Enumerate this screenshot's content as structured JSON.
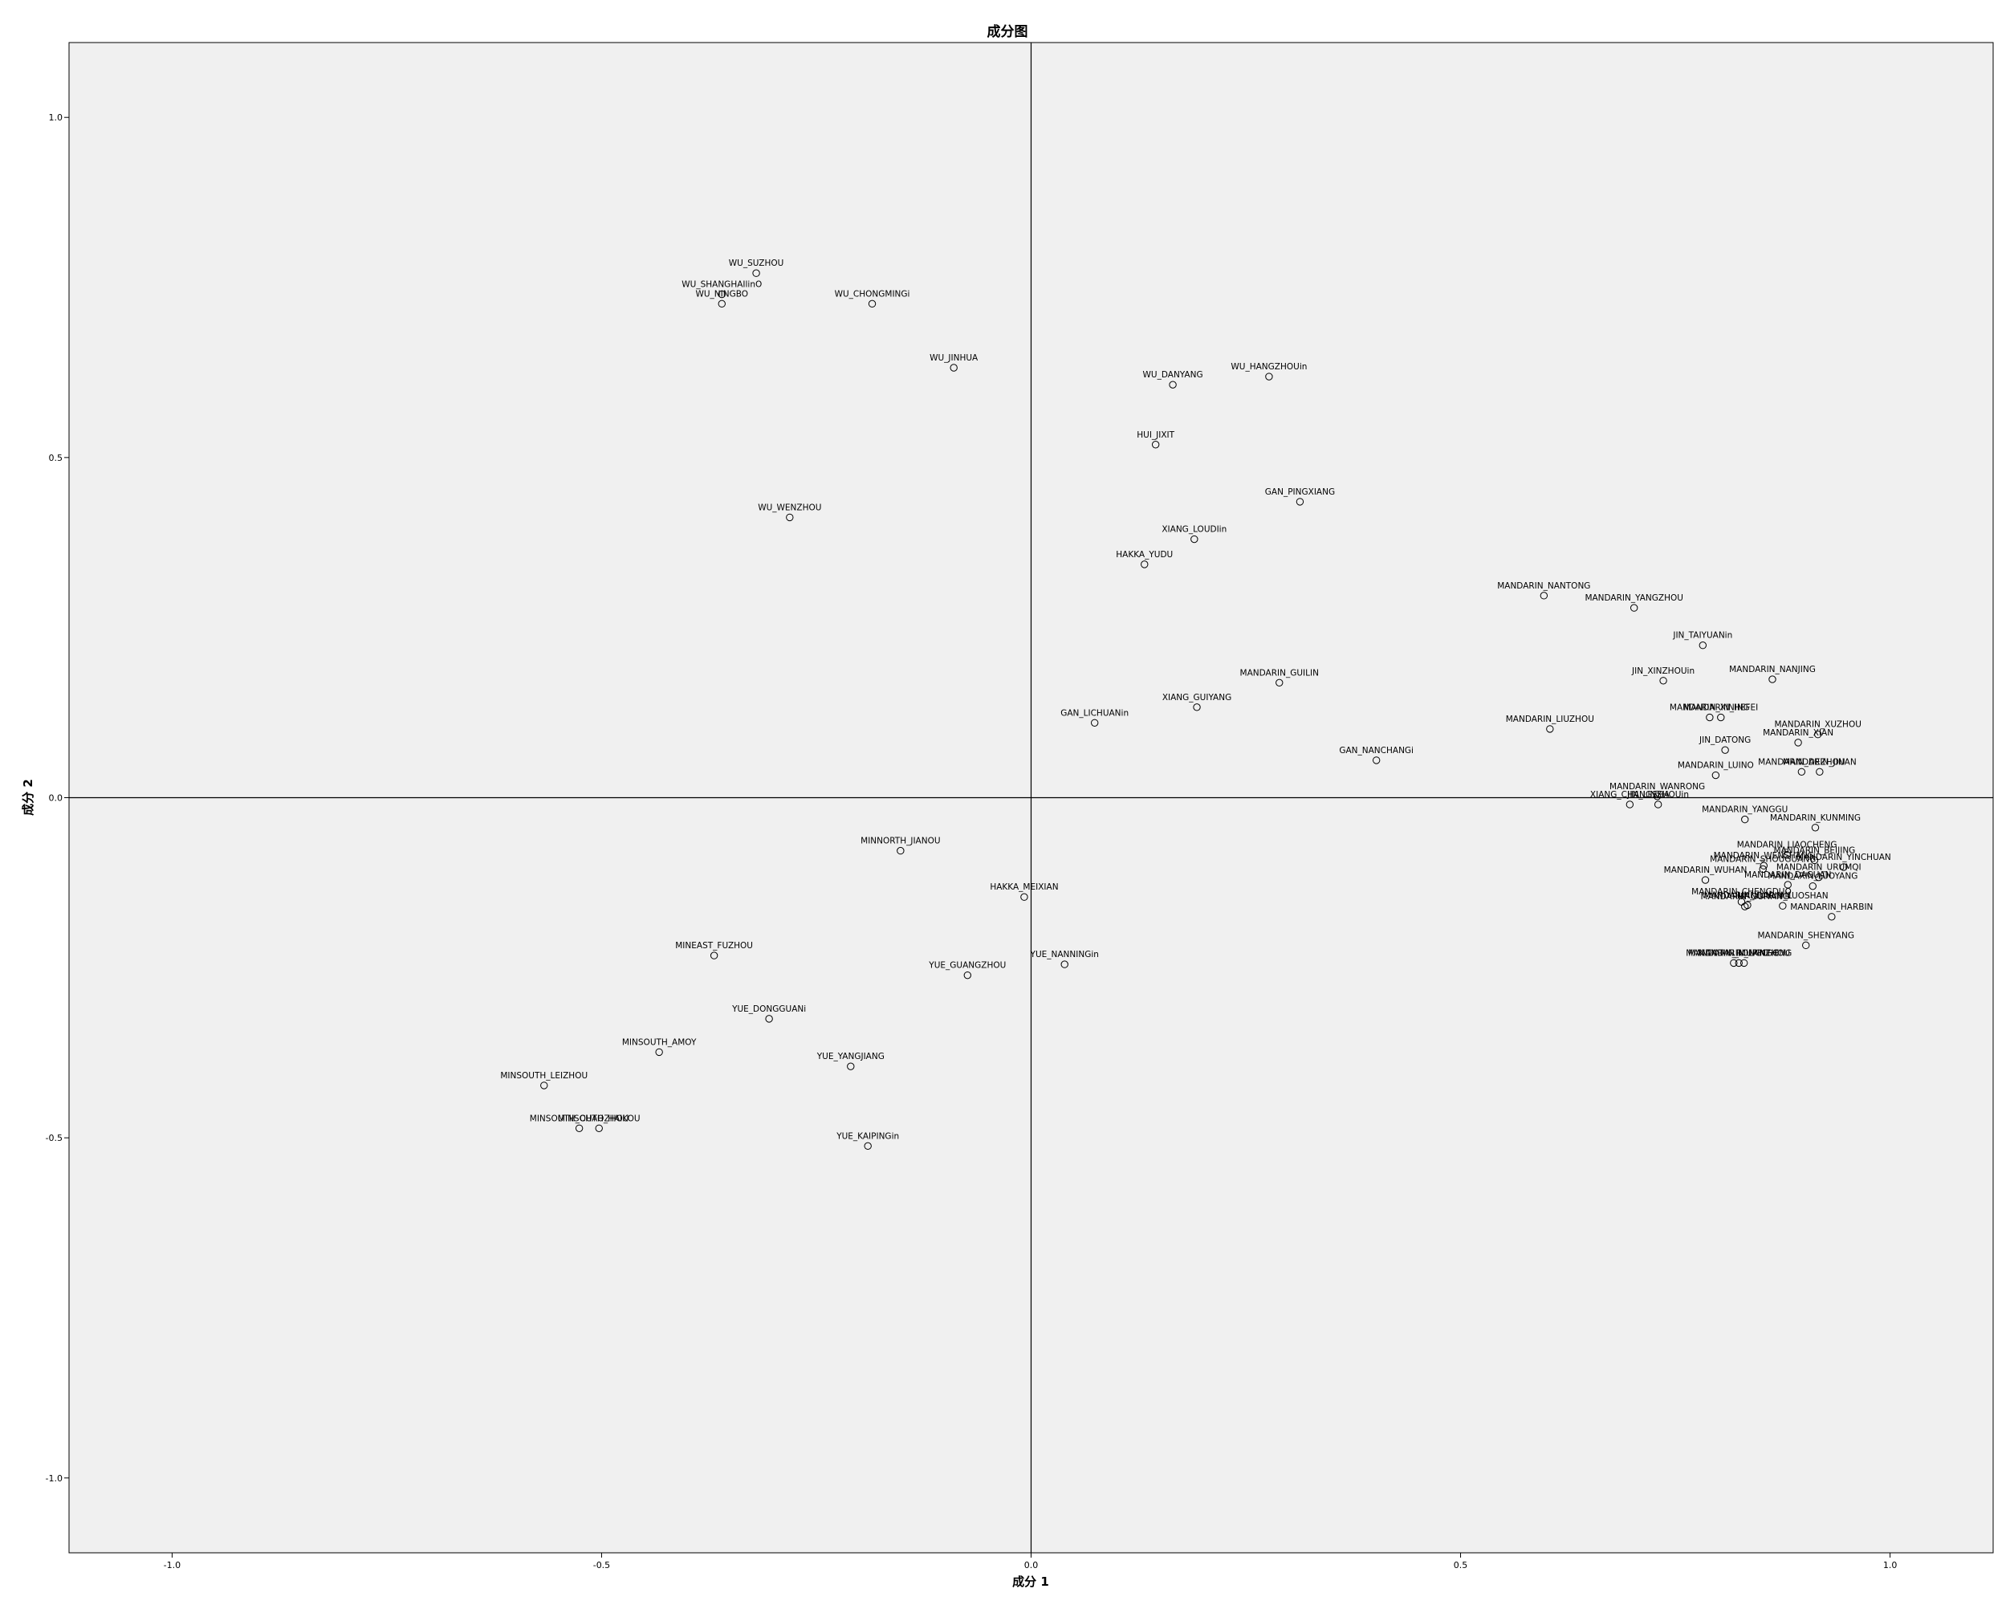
{
  "chart_data": {
    "type": "scatter",
    "title": "成分图",
    "xlabel": "成分 1",
    "ylabel": "成分 2",
    "xlim": [
      -1.12,
      1.12
    ],
    "ylim": [
      -1.11,
      1.11
    ],
    "xticks": [
      {
        "v": -1.0,
        "label": "-1.0"
      },
      {
        "v": -0.5,
        "label": "-0.5"
      },
      {
        "v": 0.0,
        "label": "0.0"
      },
      {
        "v": 0.5,
        "label": "0.5"
      },
      {
        "v": 1.0,
        "label": "1.0"
      }
    ],
    "yticks": [
      {
        "v": 1.0,
        "label": "1.0"
      },
      {
        "v": 0.5,
        "label": "0.5"
      },
      {
        "v": 0.0,
        "label": "0.0"
      },
      {
        "v": -0.5,
        "label": "-0.5"
      },
      {
        "v": -1.0,
        "label": "-1.0"
      }
    ],
    "grid": false,
    "points": [
      {
        "label": "WU_SUZHOU",
        "x": -0.32,
        "y": 0.771
      },
      {
        "label": "WU_SHANGHAIlinO",
        "x": -0.36,
        "y": 0.74
      },
      {
        "label": "WU_NINGBO",
        "x": -0.36,
        "y": 0.726
      },
      {
        "label": "WU_CHONGMINGi",
        "x": -0.185,
        "y": 0.726
      },
      {
        "label": "WU_JINHUA",
        "x": -0.09,
        "y": 0.632
      },
      {
        "label": "WU_DANYANG",
        "x": 0.165,
        "y": 0.607
      },
      {
        "label": "WU_HANGZHOUin",
        "x": 0.277,
        "y": 0.619
      },
      {
        "label": "HUI_JIXIT",
        "x": 0.145,
        "y": 0.519
      },
      {
        "label": "GAN_PINGXIANG",
        "x": 0.313,
        "y": 0.435
      },
      {
        "label": "WU_WENZHOU",
        "x": -0.281,
        "y": 0.412
      },
      {
        "label": "XIANG_LOUDIin",
        "x": 0.19,
        "y": 0.38
      },
      {
        "label": "HAKKA_YUDU",
        "x": 0.132,
        "y": 0.343
      },
      {
        "label": "MANDARIN_NANTONG",
        "x": 0.597,
        "y": 0.297
      },
      {
        "label": "MANDARIN_YANGZHOU",
        "x": 0.702,
        "y": 0.279
      },
      {
        "label": "JIN_TAIYUANin",
        "x": 0.782,
        "y": 0.224
      },
      {
        "label": "JIN_XINZHOUin",
        "x": 0.736,
        "y": 0.172
      },
      {
        "label": "MANDARIN_NANJING",
        "x": 0.863,
        "y": 0.174
      },
      {
        "label": "MANDARIN_GUILIN",
        "x": 0.289,
        "y": 0.169
      },
      {
        "label": "XIANG_GUIYANG",
        "x": 0.193,
        "y": 0.133
      },
      {
        "label": "GAN_LICHUANin",
        "x": 0.074,
        "y": 0.11
      },
      {
        "label": "MANDARIN_HEFEI",
        "x": 0.803,
        "y": 0.118
      },
      {
        "label": "MANDARIN_LIUZHOU",
        "x": 0.604,
        "y": 0.101
      },
      {
        "label": "MANDARIN_XINING",
        "x": 0.79,
        "y": 0.118
      },
      {
        "label": "MANDARIN_XUZHOU",
        "x": 0.916,
        "y": 0.093
      },
      {
        "label": "JIN_DATONG",
        "x": 0.808,
        "y": 0.07
      },
      {
        "label": "MANDARIN_XIAN",
        "x": 0.893,
        "y": 0.081
      },
      {
        "label": "GAN_NANCHANGi",
        "x": 0.402,
        "y": 0.055
      },
      {
        "label": "MANDARIN_LUINO",
        "x": 0.797,
        "y": 0.033
      },
      {
        "label": "MANDARIN_DEZHOU",
        "x": 0.897,
        "y": 0.038
      },
      {
        "label": "MANDARIN_JINAN",
        "x": 0.918,
        "y": 0.038
      },
      {
        "label": "MANDARIN_WANRONG",
        "x": 0.729,
        "y": 0.002
      },
      {
        "label": "XIANG_CHANGSHA",
        "x": 0.697,
        "y": -0.01
      },
      {
        "label": "MANDARIN_YANGGU",
        "x": 0.831,
        "y": -0.032
      },
      {
        "label": "JIN_LINZHOUin",
        "x": 0.73,
        "y": -0.01
      },
      {
        "label": "MANDARIN_KUNMING",
        "x": 0.913,
        "y": -0.044
      },
      {
        "label": "MANDARIN_WENSHANG",
        "x": 0.853,
        "y": -0.1
      },
      {
        "label": "MANDARIN_LIAOCHENG",
        "x": 0.88,
        "y": -0.084
      },
      {
        "label": "MANDARIN_YINCHUAN",
        "x": 0.946,
        "y": -0.102
      },
      {
        "label": "MANDARIN_SHOUGUANG",
        "x": 0.852,
        "y": -0.105
      },
      {
        "label": "MANDARIN_BEIJING",
        "x": 0.912,
        "y": -0.092
      },
      {
        "label": "MANDARIN_DAGUAN",
        "x": 0.881,
        "y": -0.128
      },
      {
        "label": "MANDARIN_URUMQI",
        "x": 0.917,
        "y": -0.117
      },
      {
        "label": "MANDARIN_WUHAN",
        "x": 0.785,
        "y": -0.121
      },
      {
        "label": "MANDARIN_LUOYANG",
        "x": 0.91,
        "y": -0.13
      },
      {
        "label": "MANDARIN_CHENGDUO",
        "x": 0.827,
        "y": -0.153
      },
      {
        "label": "MANDARIN_LUOSHAN",
        "x": 0.875,
        "y": -0.159
      },
      {
        "label": "MANDARIN_HARBIN",
        "x": 0.932,
        "y": -0.175
      },
      {
        "label": "MANDARIN_YUNLIAN",
        "x": 0.834,
        "y": -0.158
      },
      {
        "label": "MANDARIN_GUIYANG",
        "x": 0.831,
        "y": -0.16
      },
      {
        "label": "MANDARIN_SHENYANG",
        "x": 0.902,
        "y": -0.217
      },
      {
        "label": "MANDARIN_MUPINGO",
        "x": 0.818,
        "y": -0.243
      },
      {
        "label": "MANDARIN_RONGCHENG",
        "x": 0.824,
        "y": -0.243
      },
      {
        "label": "MANDARIN_LANZHOU",
        "x": 0.83,
        "y": -0.243
      },
      {
        "label": "MINNORTH_JIANOU",
        "x": -0.152,
        "y": -0.078
      },
      {
        "label": "HAKKA_MEIXIAN",
        "x": -0.008,
        "y": -0.146
      },
      {
        "label": "YUE_NANNINGin",
        "x": 0.039,
        "y": -0.245
      },
      {
        "label": "MINEAST_FUZHOU",
        "x": -0.369,
        "y": -0.232
      },
      {
        "label": "YUE_GUANGZHOU",
        "x": -0.074,
        "y": -0.261
      },
      {
        "label": "YUE_DONGGUANi",
        "x": -0.305,
        "y": -0.325
      },
      {
        "label": "MINSOUTH_AMOY",
        "x": -0.433,
        "y": -0.374
      },
      {
        "label": "YUE_YANGJIANG",
        "x": -0.21,
        "y": -0.395
      },
      {
        "label": "MINSOUTH_LEIZHOU",
        "x": -0.567,
        "y": -0.423
      },
      {
        "label": "MINSOUTH_HAIKOU",
        "x": -0.503,
        "y": -0.486
      },
      {
        "label": "MINSOUTH_CHAOZHOU",
        "x": -0.526,
        "y": -0.486
      },
      {
        "label": "YUE_KAIPINGin",
        "x": -0.19,
        "y": -0.512
      }
    ]
  }
}
